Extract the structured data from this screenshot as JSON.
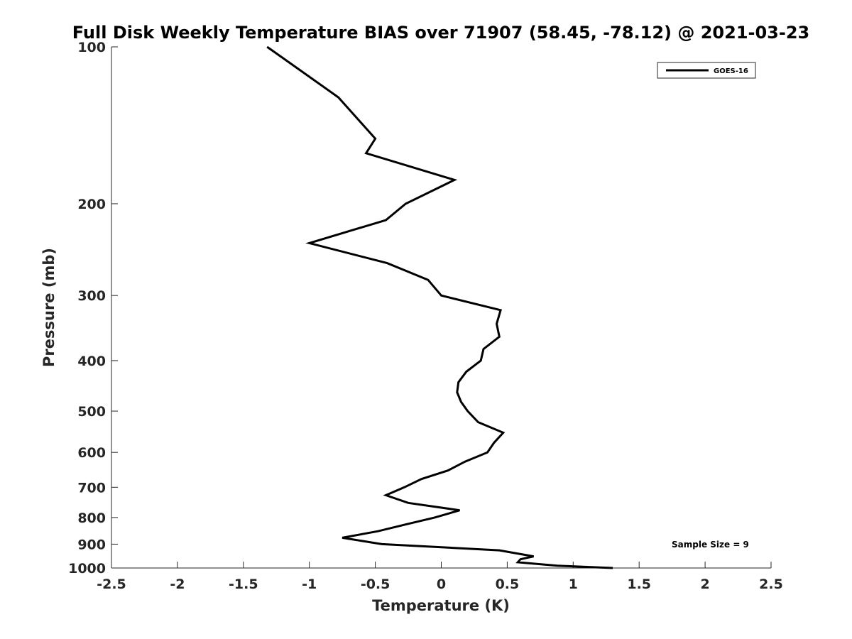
{
  "chart_data": {
    "type": "line",
    "title": "Full Disk Weekly Temperature BIAS over 71907 (58.45, -78.12) @ 2021-03-23",
    "xlabel": "Temperature (K)",
    "ylabel": "Pressure (mb)",
    "xlim": [
      -2.5,
      2.5
    ],
    "ylim": [
      1000,
      100
    ],
    "yscale": "log",
    "y_reversed": true,
    "x_ticks": [
      -2.5,
      -2,
      -1.5,
      -1,
      -0.5,
      0,
      0.5,
      1,
      1.5,
      2,
      2.5
    ],
    "x_tick_labels": [
      "-2.5",
      "-2",
      "-1.5",
      "-1",
      "-0.5",
      "0",
      "0.5",
      "1",
      "1.5",
      "2",
      "2.5"
    ],
    "y_ticks": [
      100,
      200,
      300,
      400,
      500,
      600,
      700,
      800,
      900,
      1000
    ],
    "y_tick_labels": [
      "100",
      "200",
      "300",
      "400",
      "500",
      "600",
      "700",
      "800",
      "900",
      "1000"
    ],
    "grid": false,
    "legend_position": "top-right",
    "annotation": "Sample Size = 9",
    "series": [
      {
        "name": "GOES-16",
        "color": "#000000",
        "x": [
          -1.32,
          -0.78,
          -0.5,
          -0.57,
          0.1,
          -0.27,
          -0.42,
          -1.0,
          -0.41,
          -0.1,
          0.0,
          0.45,
          0.42,
          0.44,
          0.32,
          0.3,
          0.19,
          0.13,
          0.12,
          0.15,
          0.2,
          0.28,
          0.47,
          0.4,
          0.35,
          0.18,
          0.05,
          -0.15,
          -0.28,
          -0.42,
          -0.25,
          0.14,
          -0.05,
          -0.27,
          -0.48,
          -0.75,
          -0.45,
          0.44,
          0.7,
          0.6,
          0.58,
          0.88,
          1.3
        ],
        "y": [
          100,
          125,
          150,
          160,
          180,
          200,
          215,
          238,
          260,
          280,
          300,
          320,
          340,
          360,
          380,
          400,
          420,
          440,
          460,
          480,
          500,
          525,
          550,
          575,
          600,
          625,
          650,
          675,
          700,
          725,
          750,
          775,
          800,
          825,
          850,
          875,
          900,
          925,
          950,
          962,
          975,
          990,
          1000
        ]
      }
    ]
  }
}
